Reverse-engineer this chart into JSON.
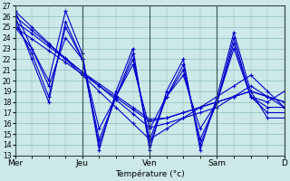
{
  "xlabel": "Température (°c)",
  "days": [
    "Mer",
    "Jeu",
    "Ven",
    "Sam",
    "D"
  ],
  "day_positions": [
    0,
    4,
    8,
    12,
    16
  ],
  "ylim": [
    13,
    27
  ],
  "yticks": [
    13,
    14,
    15,
    16,
    17,
    18,
    19,
    20,
    21,
    22,
    23,
    24,
    25,
    26,
    27
  ],
  "bg_color": "#cce8e8",
  "line_color": "#0000cc",
  "grid_color": "#88bbbb",
  "total_steps": 16,
  "wavy_series": [
    [
      26.5,
      23.0,
      20.0,
      26.5,
      22.5,
      13.5,
      19.0,
      23.0,
      13.5,
      19.0,
      22.0,
      13.5,
      18.5,
      24.5,
      19.0,
      16.5,
      16.5
    ],
    [
      26.0,
      22.0,
      18.0,
      25.5,
      22.0,
      14.0,
      18.5,
      22.5,
      14.0,
      18.5,
      21.5,
      14.0,
      18.0,
      24.0,
      18.5,
      17.0,
      17.0
    ],
    [
      25.5,
      22.5,
      18.5,
      25.0,
      22.0,
      14.5,
      18.5,
      22.0,
      14.5,
      18.5,
      21.0,
      14.5,
      18.0,
      23.5,
      18.5,
      17.5,
      17.5
    ],
    [
      25.0,
      23.0,
      19.5,
      24.0,
      22.0,
      15.5,
      18.5,
      21.5,
      15.5,
      18.5,
      20.5,
      15.5,
      18.0,
      23.0,
      18.5,
      18.0,
      19.0
    ]
  ],
  "straight_series": [
    [
      26.5,
      25.0,
      23.5,
      22.0,
      20.5,
      19.0,
      17.5,
      16.0,
      14.5,
      15.5,
      16.5,
      17.5,
      18.5,
      19.5,
      20.5,
      19.0,
      17.5
    ],
    [
      26.0,
      24.7,
      23.4,
      22.1,
      20.8,
      19.5,
      18.2,
      16.9,
      15.6,
      16.0,
      16.5,
      17.0,
      17.5,
      18.5,
      19.5,
      18.5,
      17.5
    ],
    [
      25.5,
      24.4,
      23.2,
      22.0,
      20.8,
      19.7,
      18.6,
      17.5,
      16.4,
      16.5,
      17.0,
      17.5,
      18.0,
      18.5,
      19.0,
      18.5,
      18.0
    ],
    [
      25.0,
      23.9,
      22.8,
      21.7,
      20.6,
      19.5,
      18.4,
      17.3,
      16.2,
      16.5,
      17.0,
      17.5,
      18.0,
      18.5,
      19.0,
      18.5,
      18.0
    ]
  ]
}
